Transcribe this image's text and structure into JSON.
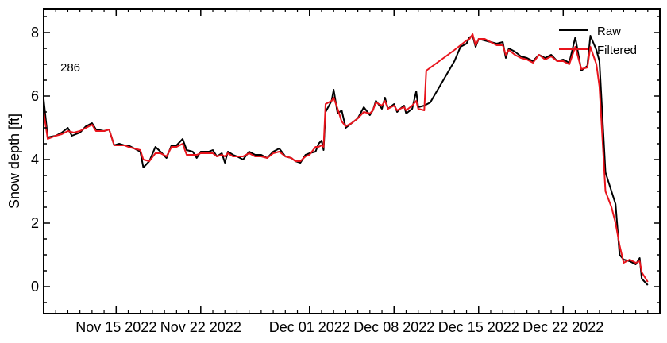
{
  "chart_data": {
    "type": "line",
    "title": "",
    "xlabel": "",
    "ylabel": "Snow depth [ft]",
    "annotation": "286",
    "xlim": [
      "2022-11-09",
      "2022-12-30"
    ],
    "ylim": [
      -0.85,
      8.75
    ],
    "y_ticks": [
      0,
      2,
      4,
      6,
      8
    ],
    "x_ticks": [
      {
        "date": "2022-11-15",
        "label": "Nov 15 2022"
      },
      {
        "date": "2022-11-22",
        "label": "Nov 22 2022"
      },
      {
        "date": "2022-12-01",
        "label": "Dec 01 2022"
      },
      {
        "date": "2022-12-08",
        "label": "Dec 08 2022"
      },
      {
        "date": "2022-12-15",
        "label": "Dec 15 2022"
      },
      {
        "date": "2022-12-22",
        "label": "Dec 22 2022"
      }
    ],
    "legend_position": "top-right",
    "grid": false,
    "series": [
      {
        "name": "Raw",
        "color": "#000000",
        "points": [
          [
            "2022-11-09",
            5.9
          ],
          [
            "2022-11-09T08:00",
            4.7
          ],
          [
            "2022-11-10",
            4.75
          ],
          [
            "2022-11-10T12:00",
            4.85
          ],
          [
            "2022-11-11",
            5.0
          ],
          [
            "2022-11-11T08:00",
            4.75
          ],
          [
            "2022-11-12",
            4.85
          ],
          [
            "2022-11-12T12:00",
            5.05
          ],
          [
            "2022-11-13",
            5.15
          ],
          [
            "2022-11-13T08:00",
            4.95
          ],
          [
            "2022-11-14",
            4.9
          ],
          [
            "2022-11-14T10:00",
            4.95
          ],
          [
            "2022-11-14T20:00",
            4.45
          ],
          [
            "2022-11-15T06:00",
            4.5
          ],
          [
            "2022-11-15T16:00",
            4.45
          ],
          [
            "2022-11-16",
            4.45
          ],
          [
            "2022-11-16T12:00",
            4.35
          ],
          [
            "2022-11-17",
            4.25
          ],
          [
            "2022-11-17T06:00",
            3.75
          ],
          [
            "2022-11-17T18:00",
            3.95
          ],
          [
            "2022-11-18T06:00",
            4.4
          ],
          [
            "2022-11-18T16:00",
            4.25
          ],
          [
            "2022-11-19T04:00",
            4.05
          ],
          [
            "2022-11-19T14:00",
            4.45
          ],
          [
            "2022-11-20",
            4.45
          ],
          [
            "2022-11-20T12:00",
            4.65
          ],
          [
            "2022-11-20T20:00",
            4.3
          ],
          [
            "2022-11-21T08:00",
            4.25
          ],
          [
            "2022-11-21T16:00",
            4.05
          ],
          [
            "2022-11-22",
            4.25
          ],
          [
            "2022-11-22T16:00",
            4.25
          ],
          [
            "2022-11-23",
            4.3
          ],
          [
            "2022-11-23T08:00",
            4.1
          ],
          [
            "2022-11-23T18:00",
            4.2
          ],
          [
            "2022-11-24",
            3.9
          ],
          [
            "2022-11-24T06:00",
            4.25
          ],
          [
            "2022-11-24T16:00",
            4.15
          ],
          [
            "2022-11-25",
            4.1
          ],
          [
            "2022-11-25T12:00",
            4.0
          ],
          [
            "2022-11-26",
            4.25
          ],
          [
            "2022-11-26T12:00",
            4.15
          ],
          [
            "2022-11-27",
            4.15
          ],
          [
            "2022-11-27T12:00",
            4.05
          ],
          [
            "2022-11-28",
            4.25
          ],
          [
            "2022-11-28T12:00",
            4.35
          ],
          [
            "2022-11-29",
            4.1
          ],
          [
            "2022-11-29T12:00",
            4.05
          ],
          [
            "2022-11-29T20:00",
            3.95
          ],
          [
            "2022-11-30T06:00",
            3.9
          ],
          [
            "2022-11-30T16:00",
            4.15
          ],
          [
            "2022-12-01",
            4.2
          ],
          [
            "2022-12-01T12:00",
            4.25
          ],
          [
            "2022-12-01T18:00",
            4.5
          ],
          [
            "2022-12-02",
            4.6
          ],
          [
            "2022-12-02T04:00",
            4.3
          ],
          [
            "2022-12-02T08:00",
            5.5
          ],
          [
            "2022-12-02T20:00",
            5.85
          ],
          [
            "2022-12-03",
            6.2
          ],
          [
            "2022-12-03T08:00",
            5.45
          ],
          [
            "2022-12-03T16:00",
            5.55
          ],
          [
            "2022-12-04",
            5.0
          ],
          [
            "2022-12-04T12:00",
            5.15
          ],
          [
            "2022-12-05",
            5.3
          ],
          [
            "2022-12-05T12:00",
            5.65
          ],
          [
            "2022-12-06",
            5.4
          ],
          [
            "2022-12-06T06:00",
            5.55
          ],
          [
            "2022-12-06T12:00",
            5.85
          ],
          [
            "2022-12-07",
            5.6
          ],
          [
            "2022-12-07T06:00",
            5.95
          ],
          [
            "2022-12-07T12:00",
            5.6
          ],
          [
            "2022-12-08",
            5.75
          ],
          [
            "2022-12-08T06:00",
            5.5
          ],
          [
            "2022-12-08T12:00",
            5.6
          ],
          [
            "2022-12-08T20:00",
            5.7
          ],
          [
            "2022-12-09",
            5.45
          ],
          [
            "2022-12-09T12:00",
            5.6
          ],
          [
            "2022-12-09T20:00",
            6.15
          ],
          [
            "2022-12-10",
            5.65
          ],
          [
            "2022-12-10T12:00",
            5.7
          ],
          [
            "2022-12-11",
            5.8
          ],
          [
            "2022-12-13",
            7.1
          ],
          [
            "2022-12-13T12:00",
            7.55
          ],
          [
            "2022-12-14",
            7.65
          ],
          [
            "2022-12-14T06:00",
            7.85
          ],
          [
            "2022-12-14T12:00",
            7.9
          ],
          [
            "2022-12-14T18:00",
            7.55
          ],
          [
            "2022-12-15",
            7.8
          ],
          [
            "2022-12-15T12:00",
            7.75
          ],
          [
            "2022-12-16",
            7.7
          ],
          [
            "2022-12-16T12:00",
            7.65
          ],
          [
            "2022-12-17",
            7.7
          ],
          [
            "2022-12-17T06:00",
            7.2
          ],
          [
            "2022-12-17T12:00",
            7.5
          ],
          [
            "2022-12-18",
            7.4
          ],
          [
            "2022-12-18T12:00",
            7.25
          ],
          [
            "2022-12-19",
            7.2
          ],
          [
            "2022-12-19T12:00",
            7.1
          ],
          [
            "2022-12-20",
            7.3
          ],
          [
            "2022-12-20T12:00",
            7.2
          ],
          [
            "2022-12-21",
            7.3
          ],
          [
            "2022-12-21T12:00",
            7.1
          ],
          [
            "2022-12-22",
            7.15
          ],
          [
            "2022-12-22T12:00",
            7.05
          ],
          [
            "2022-12-23",
            7.85
          ],
          [
            "2022-12-23T12:00",
            6.8
          ],
          [
            "2022-12-24",
            6.95
          ],
          [
            "2022-12-24T06:00",
            7.9
          ],
          [
            "2022-12-24T18:00",
            7.45
          ],
          [
            "2022-12-25",
            7.1
          ],
          [
            "2022-12-25T12:00",
            3.6
          ],
          [
            "2022-12-26",
            3.0
          ],
          [
            "2022-12-26T08:00",
            2.6
          ],
          [
            "2022-12-26T16:00",
            1.0
          ],
          [
            "2022-12-27",
            0.85
          ],
          [
            "2022-12-27T12:00",
            0.8
          ],
          [
            "2022-12-28",
            0.7
          ],
          [
            "2022-12-28T08:00",
            0.9
          ],
          [
            "2022-12-28T12:00",
            0.25
          ],
          [
            "2022-12-29",
            0.05
          ]
        ]
      },
      {
        "name": "Filtered",
        "color": "#e8141c",
        "points": [
          [
            "2022-11-09",
            5.5
          ],
          [
            "2022-11-09T08:00",
            4.65
          ],
          [
            "2022-11-10",
            4.75
          ],
          [
            "2022-11-10T12:00",
            4.8
          ],
          [
            "2022-11-11",
            4.9
          ],
          [
            "2022-11-11T12:00",
            4.85
          ],
          [
            "2022-11-12",
            4.9
          ],
          [
            "2022-11-12T12:00",
            5.0
          ],
          [
            "2022-11-13",
            5.1
          ],
          [
            "2022-11-13T08:00",
            4.9
          ],
          [
            "2022-11-14",
            4.9
          ],
          [
            "2022-11-14T10:00",
            4.95
          ],
          [
            "2022-11-14T20:00",
            4.45
          ],
          [
            "2022-11-15T06:00",
            4.45
          ],
          [
            "2022-11-15T16:00",
            4.45
          ],
          [
            "2022-11-16",
            4.4
          ],
          [
            "2022-11-16T12:00",
            4.35
          ],
          [
            "2022-11-17",
            4.3
          ],
          [
            "2022-11-17T06:00",
            4.0
          ],
          [
            "2022-11-17T18:00",
            3.95
          ],
          [
            "2022-11-18T06:00",
            4.2
          ],
          [
            "2022-11-18T16:00",
            4.2
          ],
          [
            "2022-11-19T04:00",
            4.1
          ],
          [
            "2022-11-19T14:00",
            4.4
          ],
          [
            "2022-11-20",
            4.4
          ],
          [
            "2022-11-20T12:00",
            4.5
          ],
          [
            "2022-11-20T20:00",
            4.15
          ],
          [
            "2022-11-21T08:00",
            4.15
          ],
          [
            "2022-11-21T16:00",
            4.15
          ],
          [
            "2022-11-22",
            4.2
          ],
          [
            "2022-11-22T16:00",
            4.2
          ],
          [
            "2022-11-23",
            4.2
          ],
          [
            "2022-11-23T08:00",
            4.1
          ],
          [
            "2022-11-23T18:00",
            4.15
          ],
          [
            "2022-11-24",
            4.1
          ],
          [
            "2022-11-24T06:00",
            4.2
          ],
          [
            "2022-11-24T16:00",
            4.1
          ],
          [
            "2022-11-25",
            4.1
          ],
          [
            "2022-11-25T12:00",
            4.1
          ],
          [
            "2022-11-26",
            4.2
          ],
          [
            "2022-11-26T12:00",
            4.1
          ],
          [
            "2022-11-27",
            4.1
          ],
          [
            "2022-11-27T12:00",
            4.05
          ],
          [
            "2022-11-28",
            4.2
          ],
          [
            "2022-11-28T12:00",
            4.25
          ],
          [
            "2022-11-29",
            4.1
          ],
          [
            "2022-11-29T12:00",
            4.05
          ],
          [
            "2022-11-29T20:00",
            3.95
          ],
          [
            "2022-11-30T06:00",
            3.95
          ],
          [
            "2022-11-30T16:00",
            4.1
          ],
          [
            "2022-12-01",
            4.15
          ],
          [
            "2022-12-01T12:00",
            4.4
          ],
          [
            "2022-12-01T18:00",
            4.4
          ],
          [
            "2022-12-02",
            4.45
          ],
          [
            "2022-12-02T04:00",
            4.4
          ],
          [
            "2022-12-02T08:00",
            5.75
          ],
          [
            "2022-12-02T20:00",
            5.85
          ],
          [
            "2022-12-03",
            5.95
          ],
          [
            "2022-12-03T08:00",
            5.6
          ],
          [
            "2022-12-03T16:00",
            5.2
          ],
          [
            "2022-12-04",
            5.05
          ],
          [
            "2022-12-04T12:00",
            5.15
          ],
          [
            "2022-12-05",
            5.3
          ],
          [
            "2022-12-05T12:00",
            5.5
          ],
          [
            "2022-12-06",
            5.45
          ],
          [
            "2022-12-06T06:00",
            5.55
          ],
          [
            "2022-12-06T12:00",
            5.8
          ],
          [
            "2022-12-07",
            5.7
          ],
          [
            "2022-12-07T06:00",
            5.85
          ],
          [
            "2022-12-07T12:00",
            5.6
          ],
          [
            "2022-12-08",
            5.7
          ],
          [
            "2022-12-08T06:00",
            5.55
          ],
          [
            "2022-12-08T12:00",
            5.6
          ],
          [
            "2022-12-08T20:00",
            5.65
          ],
          [
            "2022-12-09",
            5.55
          ],
          [
            "2022-12-09T12:00",
            5.7
          ],
          [
            "2022-12-09T20:00",
            5.85
          ],
          [
            "2022-12-10",
            5.6
          ],
          [
            "2022-12-10T12:00",
            5.55
          ],
          [
            "2022-12-10T16:00",
            6.8
          ],
          [
            "2022-12-13",
            7.45
          ],
          [
            "2022-12-13T12:00",
            7.6
          ],
          [
            "2022-12-14",
            7.75
          ],
          [
            "2022-12-14T06:00",
            7.8
          ],
          [
            "2022-12-14T12:00",
            7.95
          ],
          [
            "2022-12-14T18:00",
            7.6
          ],
          [
            "2022-12-15",
            7.8
          ],
          [
            "2022-12-15T12:00",
            7.8
          ],
          [
            "2022-12-16",
            7.7
          ],
          [
            "2022-12-16T12:00",
            7.6
          ],
          [
            "2022-12-17",
            7.6
          ],
          [
            "2022-12-17T06:00",
            7.3
          ],
          [
            "2022-12-17T12:00",
            7.45
          ],
          [
            "2022-12-18",
            7.3
          ],
          [
            "2022-12-18T12:00",
            7.2
          ],
          [
            "2022-12-19",
            7.15
          ],
          [
            "2022-12-19T12:00",
            7.05
          ],
          [
            "2022-12-20",
            7.3
          ],
          [
            "2022-12-20T12:00",
            7.15
          ],
          [
            "2022-12-21",
            7.25
          ],
          [
            "2022-12-21T12:00",
            7.1
          ],
          [
            "2022-12-22",
            7.1
          ],
          [
            "2022-12-22T12:00",
            7.0
          ],
          [
            "2022-12-23",
            7.55
          ],
          [
            "2022-12-23T12:00",
            6.85
          ],
          [
            "2022-12-24",
            6.9
          ],
          [
            "2022-12-24T06:00",
            7.55
          ],
          [
            "2022-12-24T18:00",
            7.0
          ],
          [
            "2022-12-25",
            6.3
          ],
          [
            "2022-12-25T12:00",
            3.0
          ],
          [
            "2022-12-26",
            2.5
          ],
          [
            "2022-12-26T08:00",
            2.0
          ],
          [
            "2022-12-26T16:00",
            1.3
          ],
          [
            "2022-12-27",
            0.75
          ],
          [
            "2022-12-27T12:00",
            0.85
          ],
          [
            "2022-12-28",
            0.75
          ],
          [
            "2022-12-28T08:00",
            0.8
          ],
          [
            "2022-12-28T12:00",
            0.45
          ],
          [
            "2022-12-29",
            0.15
          ]
        ]
      }
    ]
  }
}
